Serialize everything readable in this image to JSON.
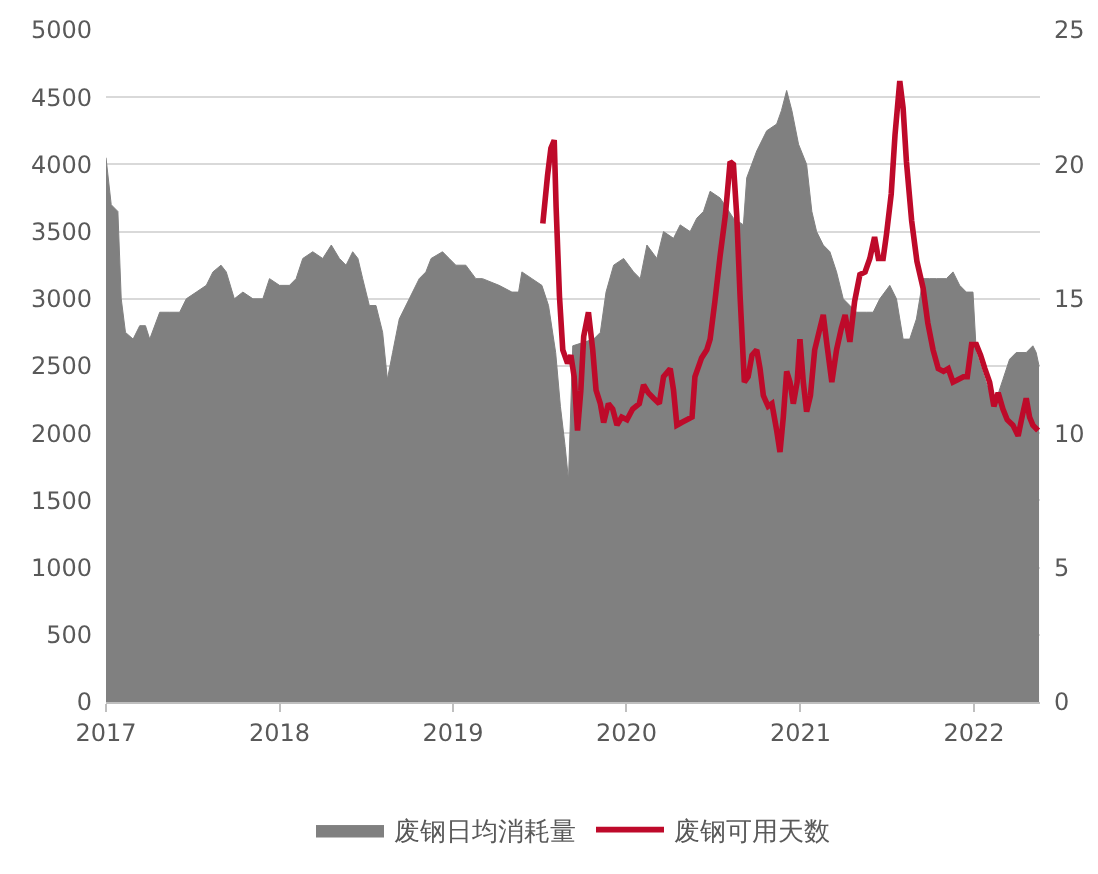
{
  "chart_data": {
    "type": "area",
    "series": [
      {
        "name": "废钢日均消耗量",
        "color": "#808080",
        "x": [
          "2017-01-01",
          "2017-01-12",
          "2017-01-26",
          "2017-02-02",
          "2017-02-11",
          "2017-02-27",
          "2017-03-13",
          "2017-03-25",
          "2017-04-03",
          "2017-04-24",
          "2017-05-15",
          "2017-06-05",
          "2017-06-19",
          "2017-07-10",
          "2017-07-31",
          "2017-08-14",
          "2017-08-31",
          "2017-09-11",
          "2017-09-28",
          "2017-10-16",
          "2017-11-06",
          "2017-11-27",
          "2017-12-11",
          "2018-01-01",
          "2018-01-22",
          "2018-02-05",
          "2018-02-19",
          "2018-03-12",
          "2018-04-02",
          "2018-04-20",
          "2018-05-07",
          "2018-05-21",
          "2018-06-04",
          "2018-06-15",
          "2018-06-25",
          "2018-07-09",
          "2018-07-23",
          "2018-08-06",
          "2018-08-16",
          "2018-08-27",
          "2018-09-10",
          "2018-10-01",
          "2018-10-22",
          "2018-11-05",
          "2018-11-16",
          "2018-12-10",
          "2018-12-24",
          "2019-01-07",
          "2019-01-28",
          "2019-02-18",
          "2019-03-04",
          "2019-04-08",
          "2019-05-05",
          "2019-05-19",
          "2019-05-26",
          "2019-06-16",
          "2019-07-07",
          "2019-07-21",
          "2019-08-05",
          "2019-08-15",
          "2019-08-25",
          "2019-09-01",
          "2019-09-10",
          "2019-10-24",
          "2019-11-07",
          "2019-11-19",
          "2019-12-05",
          "2019-12-26",
          "2020-01-16",
          "2020-01-30",
          "2020-02-13",
          "2020-03-05",
          "2020-03-19",
          "2020-04-09",
          "2020-04-23",
          "2020-05-14",
          "2020-05-28",
          "2020-06-11",
          "2020-06-25",
          "2020-07-16",
          "2020-08-13",
          "2020-09-03",
          "2020-09-10",
          "2020-10-01",
          "2020-10-22",
          "2020-11-12",
          "2020-11-22",
          "2020-12-03",
          "2020-12-14",
          "2020-12-28",
          "2021-01-14",
          "2021-01-25",
          "2021-02-04",
          "2021-02-18",
          "2021-03-04",
          "2021-03-18",
          "2021-04-01",
          "2021-04-15",
          "2021-04-29",
          "2021-05-20",
          "2021-06-03",
          "2021-06-17",
          "2021-07-08",
          "2021-07-22",
          "2021-08-05",
          "2021-08-19",
          "2021-09-02",
          "2021-09-16",
          "2021-09-30",
          "2021-10-14",
          "2021-11-04",
          "2021-11-18",
          "2021-12-02",
          "2021-12-16",
          "2021-12-30",
          "2022-01-06",
          "2022-01-20",
          "2022-02-03",
          "2022-02-17",
          "2022-03-03",
          "2022-03-17",
          "2022-03-31",
          "2022-04-21",
          "2022-05-05",
          "2022-05-12",
          "2022-05-18"
        ],
        "values": [
          4050,
          3700,
          3650,
          3000,
          2750,
          2700,
          2800,
          2800,
          2700,
          2900,
          2900,
          2900,
          3000,
          3050,
          3100,
          3200,
          3250,
          3200,
          3000,
          3050,
          3000,
          3000,
          3150,
          3100,
          3100,
          3150,
          3300,
          3350,
          3300,
          3400,
          3300,
          3250,
          3350,
          3300,
          3150,
          2950,
          2950,
          2750,
          2400,
          2600,
          2850,
          3000,
          3150,
          3200,
          3300,
          3350,
          3300,
          3250,
          3250,
          3150,
          3150,
          3100,
          3050,
          3050,
          3200,
          3150,
          3100,
          2950,
          2600,
          2200,
          1900,
          1650,
          2650,
          2700,
          2750,
          3050,
          3250,
          3300,
          3200,
          3150,
          3400,
          3300,
          3500,
          3450,
          3550,
          3500,
          3600,
          3650,
          3800,
          3750,
          3600,
          3550,
          3900,
          4100,
          4250,
          4300,
          4400,
          4550,
          4400,
          4150,
          4000,
          3650,
          3500,
          3400,
          3350,
          3200,
          3000,
          2950,
          2900,
          2900,
          2900,
          3000,
          3100,
          3000,
          2700,
          2700,
          2850,
          3150,
          3150,
          3150,
          3150,
          3200,
          3100,
          3050,
          3050,
          2600,
          2450,
          2300,
          2250,
          2400,
          2550,
          2600,
          2600,
          2650,
          2600,
          2500
        ]
      },
      {
        "name": "废钢可用天数",
        "type": "line",
        "color": "#be0a2a",
        "axis": "y2",
        "x": [
          "2019-07-09",
          "2019-07-19",
          "2019-07-26",
          "2019-08-02",
          "2019-08-06",
          "2019-08-13",
          "2019-08-20",
          "2019-08-30",
          "2019-09-06",
          "2019-09-13",
          "2019-09-20",
          "2019-09-27",
          "2019-10-03",
          "2019-10-13",
          "2019-10-22",
          "2019-10-29",
          "2019-11-07",
          "2019-11-14",
          "2019-11-24",
          "2019-12-03",
          "2019-12-12",
          "2019-12-22",
          "2020-01-02",
          "2020-01-14",
          "2020-01-28",
          "2020-02-06",
          "2020-02-16",
          "2020-02-27",
          "2020-03-10",
          "2020-03-19",
          "2020-04-02",
          "2020-04-09",
          "2020-04-16",
          "2020-04-26",
          "2020-05-07",
          "2020-05-18",
          "2020-05-24",
          "2020-06-07",
          "2020-06-18",
          "2020-06-25",
          "2020-07-05",
          "2020-07-16",
          "2020-07-27",
          "2020-08-06",
          "2020-08-13",
          "2020-08-20",
          "2020-08-27",
          "2020-09-05",
          "2020-09-13",
          "2020-09-21",
          "2020-10-01",
          "2020-10-08",
          "2020-10-15",
          "2020-10-25",
          "2020-11-02",
          "2020-11-12",
          "2020-11-19",
          "2020-11-26",
          "2020-12-03",
          "2020-12-10",
          "2020-12-17",
          "2020-12-25",
          "2020-12-31",
          "2021-01-07",
          "2021-01-14",
          "2021-01-22",
          "2021-01-31",
          "2021-02-11",
          "2021-02-18",
          "2021-02-25",
          "2021-03-08",
          "2021-03-18",
          "2021-03-28",
          "2021-04-05",
          "2021-04-15",
          "2021-04-25",
          "2021-05-06",
          "2021-05-17",
          "2021-05-27",
          "2021-06-06",
          "2021-06-14",
          "2021-06-24",
          "2021-07-01",
          "2021-07-11",
          "2021-07-19",
          "2021-07-29",
          "2021-08-05",
          "2021-08-12",
          "2021-08-23",
          "2021-09-03",
          "2021-09-16",
          "2021-09-26",
          "2021-10-07",
          "2021-10-18",
          "2021-10-29",
          "2021-11-08",
          "2021-11-18",
          "2021-11-29",
          "2021-12-10",
          "2021-12-18",
          "2021-12-27",
          "2022-01-06",
          "2022-01-15",
          "2022-01-24",
          "2022-02-03",
          "2022-02-12",
          "2022-02-21",
          "2022-03-03",
          "2022-03-12",
          "2022-03-24",
          "2022-04-04",
          "2022-04-11",
          "2022-04-21",
          "2022-04-28",
          "2022-05-05",
          "2022-05-16"
        ],
        "values": [
          17.8,
          19.6,
          20.6,
          20.9,
          18.4,
          15.1,
          13.1,
          12.6,
          12.9,
          12.1,
          10.1,
          11.6,
          13.6,
          14.5,
          13.1,
          11.6,
          11.1,
          10.4,
          11.1,
          10.9,
          10.3,
          10.6,
          10.5,
          10.9,
          11.1,
          11.8,
          11.5,
          11.3,
          11.1,
          12.1,
          12.4,
          11.6,
          10.3,
          10.4,
          10.5,
          10.6,
          12.1,
          12.8,
          13.1,
          13.5,
          14.9,
          16.6,
          18.1,
          20.1,
          20.0,
          18.1,
          15.1,
          11.9,
          12.1,
          12.9,
          13.1,
          12.4,
          11.4,
          11.0,
          11.1,
          10.1,
          9.3,
          10.6,
          12.3,
          11.9,
          11.1,
          11.9,
          13.5,
          11.9,
          10.8,
          11.4,
          13.1,
          13.9,
          14.4,
          13.4,
          11.9,
          13.1,
          13.9,
          14.4,
          13.4,
          14.9,
          15.9,
          16.0,
          16.5,
          17.3,
          16.5,
          16.5,
          17.4,
          18.9,
          21.1,
          23.1,
          22.1,
          20.1,
          17.9,
          16.4,
          15.4,
          14.1,
          13.1,
          12.4,
          12.3,
          12.4,
          11.9,
          12.0,
          12.1,
          12.1,
          13.3,
          13.3,
          12.9,
          12.4,
          11.9,
          11.0,
          11.5,
          10.9,
          10.5,
          10.3,
          9.9,
          10.5,
          11.3,
          10.6,
          10.3,
          10.1
        ]
      }
    ],
    "xlim": [
      "2017-01-01",
      "2022-05-20"
    ],
    "xticks": [
      "2017",
      "2018",
      "2019",
      "2020",
      "2021",
      "2022"
    ],
    "ylim": [
      0,
      5000
    ],
    "yticks": [
      0,
      500,
      1000,
      1500,
      2000,
      2500,
      3000,
      3500,
      4000,
      4500,
      5000
    ],
    "y2lim": [
      0,
      25
    ],
    "y2ticks": [
      0,
      5,
      10,
      15,
      20,
      25
    ],
    "grid": "y",
    "legend": "bottom",
    "line_style": "solid"
  }
}
